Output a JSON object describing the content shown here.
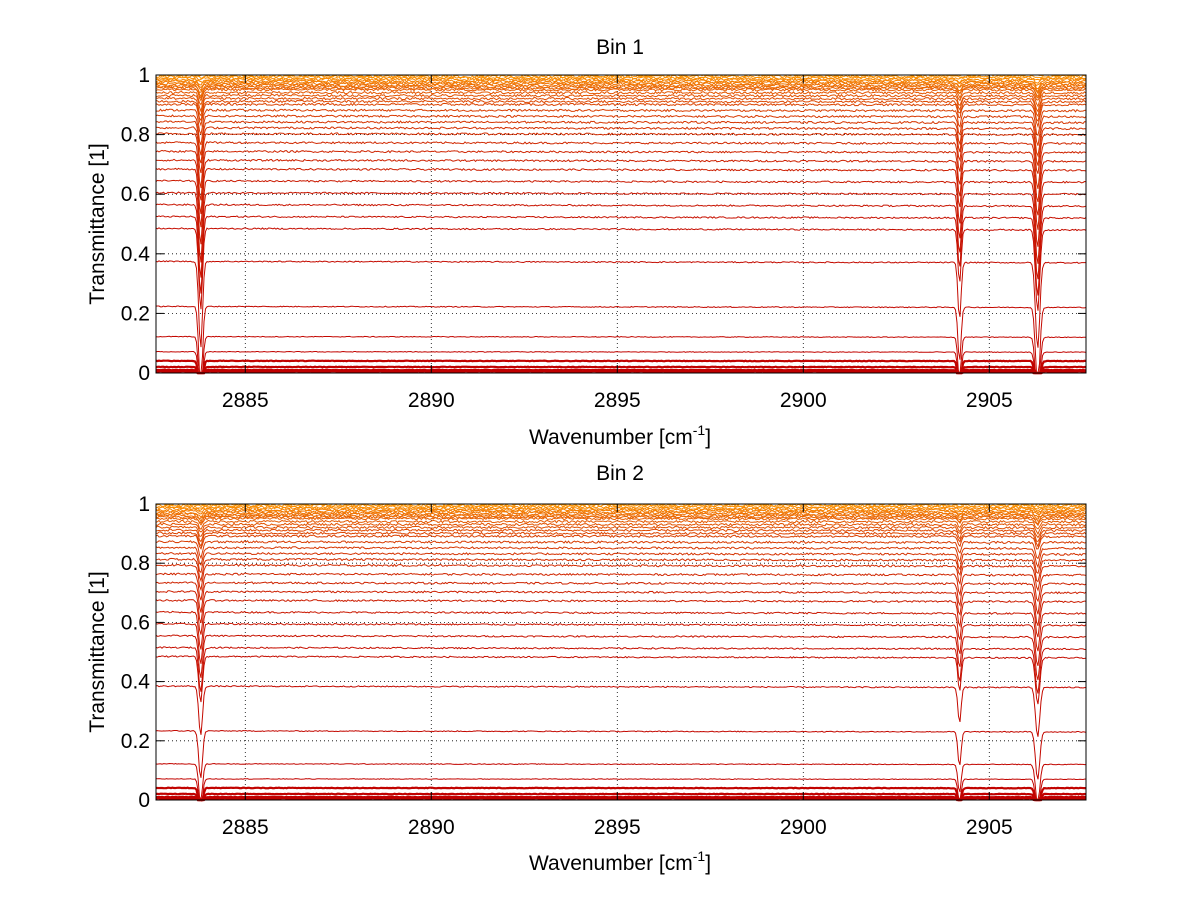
{
  "chart_data": [
    {
      "type": "line",
      "title": "Bin 1",
      "xlabel": "Wavenumber [cm",
      "xlabel_sup": "-1",
      "xlabel_end": "]",
      "ylabel": "Transmittance [1]",
      "xlim": [
        2882.6,
        2907.6
      ],
      "ylim": [
        0,
        1
      ],
      "xticks": [
        2885,
        2890,
        2895,
        2900,
        2905
      ],
      "yticks": [
        0,
        0.2,
        0.4,
        0.6,
        0.8,
        1
      ],
      "xtick_labels": [
        "2885",
        "2890",
        "2895",
        "2900",
        "2905"
      ],
      "ytick_labels": [
        "0",
        "0.2",
        "0.4",
        "0.6",
        "0.8",
        "1"
      ],
      "grid": true,
      "line_colors": [
        "#c00000",
        "#ff9900"
      ],
      "absorption_lines": [
        {
          "x": 2883.8,
          "width": 0.07,
          "depth": 0.38
        },
        {
          "x": 2904.2,
          "width": 0.06,
          "depth": 0.25
        },
        {
          "x": 2906.3,
          "width": 0.08,
          "depth": 0.38
        }
      ],
      "series_baselines": [
        0.005,
        0.01,
        0.02,
        0.04,
        0.07,
        0.12,
        0.22,
        0.37,
        0.48,
        0.52,
        0.56,
        0.6,
        0.64,
        0.68,
        0.71,
        0.74,
        0.77,
        0.8,
        0.82,
        0.84,
        0.86,
        0.88,
        0.9,
        0.91,
        0.92,
        0.93,
        0.94,
        0.95,
        0.955,
        0.96,
        0.965,
        0.97,
        0.975,
        0.98,
        0.985,
        0.99,
        0.995,
        1.0
      ]
    },
    {
      "type": "line",
      "title": "Bin 2",
      "xlabel": "Wavenumber [cm",
      "xlabel_sup": "-1",
      "xlabel_end": "]",
      "ylabel": "Transmittance [1]",
      "xlim": [
        2882.6,
        2907.6
      ],
      "ylim": [
        0,
        1
      ],
      "xticks": [
        2885,
        2890,
        2895,
        2900,
        2905
      ],
      "yticks": [
        0,
        0.2,
        0.4,
        0.6,
        0.8,
        1
      ],
      "xtick_labels": [
        "2885",
        "2890",
        "2895",
        "2900",
        "2905"
      ],
      "ytick_labels": [
        "0",
        "0.2",
        "0.4",
        "0.6",
        "0.8",
        "1"
      ],
      "grid": true,
      "line_colors": [
        "#c00000",
        "#ff9900"
      ],
      "absorption_lines": [
        {
          "x": 2883.8,
          "width": 0.07,
          "depth": 0.22
        },
        {
          "x": 2904.2,
          "width": 0.06,
          "depth": 0.16
        },
        {
          "x": 2906.3,
          "width": 0.08,
          "depth": 0.22
        }
      ],
      "series_baselines": [
        0.005,
        0.01,
        0.02,
        0.04,
        0.07,
        0.12,
        0.23,
        0.38,
        0.48,
        0.51,
        0.55,
        0.59,
        0.63,
        0.67,
        0.7,
        0.73,
        0.76,
        0.79,
        0.81,
        0.83,
        0.85,
        0.87,
        0.89,
        0.9,
        0.91,
        0.92,
        0.93,
        0.94,
        0.95,
        0.955,
        0.96,
        0.965,
        0.97,
        0.975,
        0.98,
        0.985,
        0.99,
        0.995,
        1.0
      ]
    }
  ]
}
